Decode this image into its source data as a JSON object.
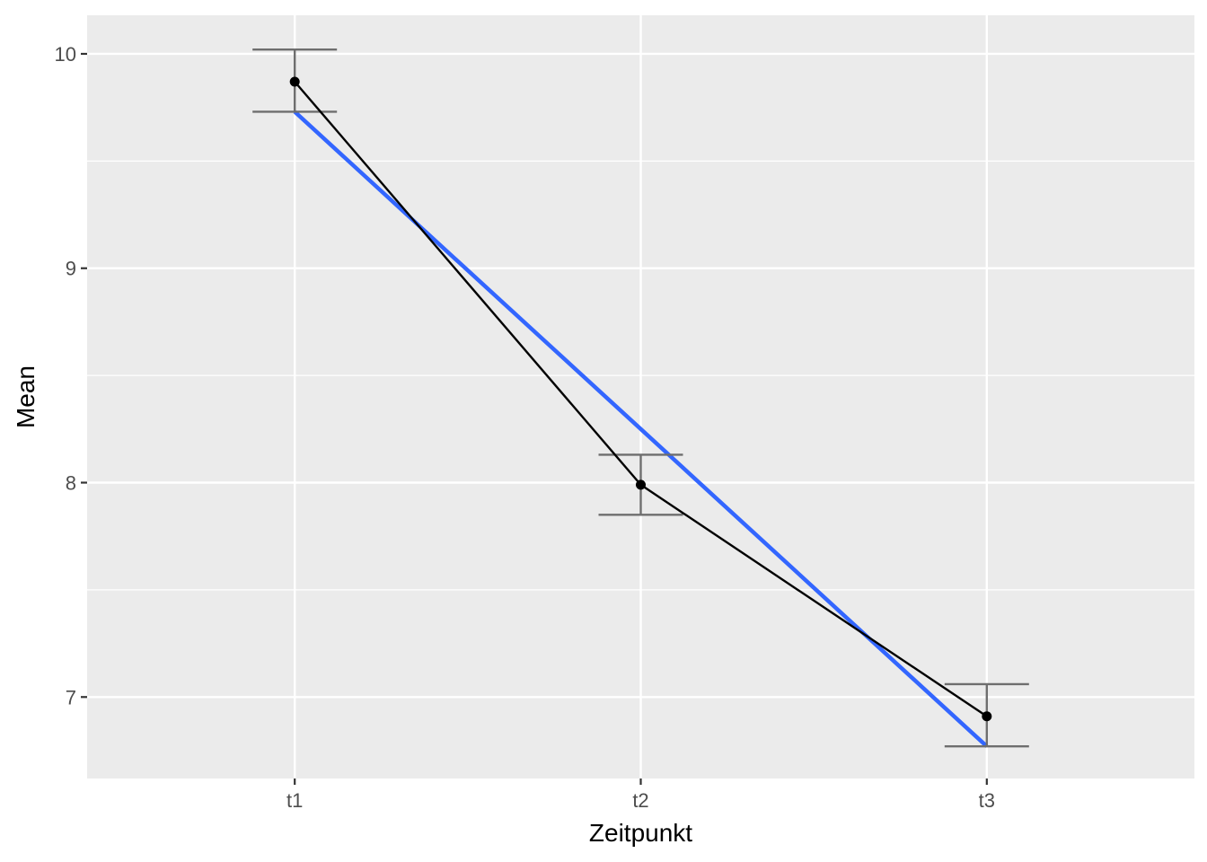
{
  "chart_data": {
    "type": "line",
    "categories": [
      "t1",
      "t2",
      "t3"
    ],
    "xlabel": "Zeitpunkt",
    "ylabel": "Mean",
    "ylim": [
      6.62,
      10.18
    ],
    "yticks": [
      7,
      8,
      9,
      10
    ],
    "y_tick_labels": [
      "7",
      "8",
      "9",
      "10"
    ],
    "grid": true,
    "legend": "none",
    "series": [
      {
        "values": [
          9.87,
          7.99,
          6.91
        ],
        "error_low": [
          9.73,
          7.85,
          6.77
        ],
        "error_high": [
          10.02,
          8.13,
          7.06
        ],
        "color": "#000000"
      }
    ],
    "trend_line": {
      "values": [
        9.73,
        8.25,
        6.77
      ],
      "color": "#3366ff"
    },
    "panel_background": "#ebebeb",
    "grid_color": "#ffffff",
    "errorbar_color": "#6e6e6e"
  }
}
